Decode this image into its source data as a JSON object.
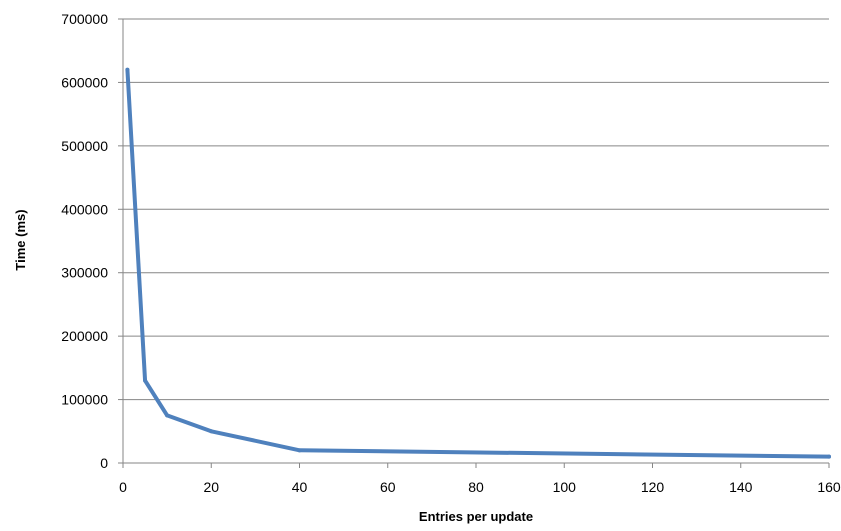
{
  "chart_data": {
    "type": "line",
    "title": "",
    "xlabel": "Entries per update",
    "ylabel": "Time (ms)",
    "xlim": [
      0,
      160
    ],
    "ylim": [
      0,
      700000
    ],
    "x_ticks": [
      0,
      20,
      40,
      60,
      80,
      100,
      120,
      140,
      160
    ],
    "y_ticks": [
      0,
      100000,
      200000,
      300000,
      400000,
      500000,
      600000,
      700000
    ],
    "x_tick_labels": [
      "0",
      "20",
      "40",
      "60",
      "80",
      "100",
      "120",
      "140",
      "160"
    ],
    "y_tick_labels": [
      "0",
      "100000",
      "200000",
      "300000",
      "400000",
      "500000",
      "600000",
      "700000"
    ],
    "grid": "horizontal",
    "legend": "none",
    "series": [
      {
        "color": "#4F81BD",
        "x": [
          1,
          5,
          10,
          20,
          40,
          160
        ],
        "y": [
          620000,
          130000,
          75000,
          50000,
          20000,
          10000
        ]
      }
    ]
  }
}
